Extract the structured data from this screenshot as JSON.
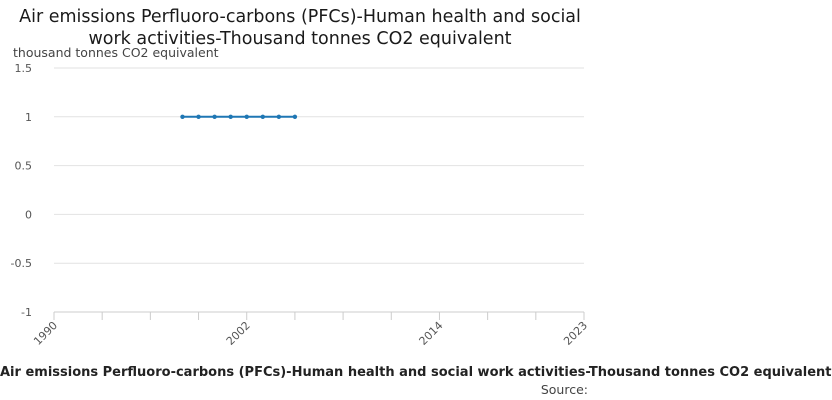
{
  "chart_data": {
    "type": "line",
    "title": "Air emissions Perfluoro-carbons (PFCs)-Human health and social work activities-Thousand tonnes CO2 equivalent",
    "unit_label": "thousand tonnes CO2 equivalent",
    "ylim": [
      -1,
      1.5
    ],
    "yticks": [
      1.5,
      1,
      0.5,
      0,
      -0.5,
      -1
    ],
    "ytick_labels": [
      "1.5",
      "1",
      "0.5",
      "0",
      "-0.5",
      "-1"
    ],
    "xlim": [
      1990,
      2023
    ],
    "xtick_labels": [
      "1990",
      "2002",
      "2014",
      "2023"
    ],
    "xticks": [
      1990,
      2002,
      2014,
      2023
    ],
    "xminor": [
      1993,
      1996,
      1999,
      2005,
      2008,
      2011,
      2017,
      2020
    ],
    "grid": true,
    "series": [
      {
        "name": "Air emissions Perfluoro-carbons (PFCs)-Human health and social work activities-Thousand tonnes CO2 equivalent",
        "color": "#1f77b4",
        "x": [
          1998,
          1999,
          2000,
          2001,
          2002,
          2003,
          2004,
          2005
        ],
        "values": [
          1,
          1,
          1,
          1,
          1,
          1,
          1,
          1
        ]
      }
    ],
    "legend_position": "bottom",
    "source_label": "Source:"
  }
}
